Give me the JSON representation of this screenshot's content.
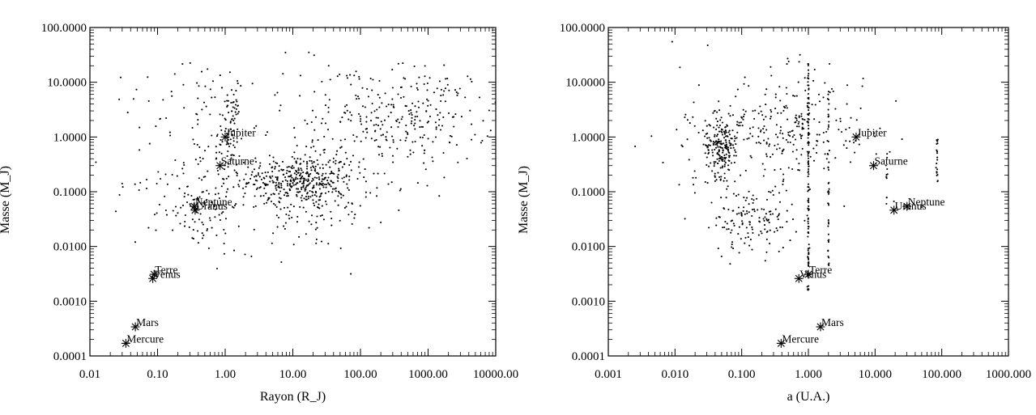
{
  "chart_data": [
    {
      "type": "scatter",
      "xlabel": "Rayon (R_J)",
      "ylabel": "Masse (M_J)",
      "xscale": "log",
      "yscale": "log",
      "xlim": [
        0.01,
        10000
      ],
      "ylim": [
        0.0001,
        100
      ],
      "xticks": [
        "0.01",
        "0.10",
        "1.00",
        "10.00",
        "100.00",
        "1000.00",
        "10000.00"
      ],
      "yticks": [
        "100.0000",
        "10.0000",
        "1.0000",
        "0.1000",
        "0.0100",
        "0.0010",
        "0.0001"
      ],
      "grid": false,
      "solar_system": [
        {
          "name": "Mercure",
          "x": 0.034,
          "y": 0.00017
        },
        {
          "name": "Mars",
          "x": 0.047,
          "y": 0.00034
        },
        {
          "name": "Venus",
          "x": 0.085,
          "y": 0.0026
        },
        {
          "name": "Terre",
          "x": 0.089,
          "y": 0.0031
        },
        {
          "name": "Uranus",
          "x": 0.36,
          "y": 0.046
        },
        {
          "name": "Neptune",
          "x": 0.35,
          "y": 0.054
        },
        {
          "name": "Saturne",
          "x": 0.84,
          "y": 0.3
        },
        {
          "name": "Jupiter",
          "x": 1.0,
          "y": 1.0
        }
      ],
      "clusters": [
        {
          "cx": 12,
          "cy": 0.17,
          "sx": 0.42,
          "sy": 0.22,
          "n": 360
        },
        {
          "cx": 1.2,
          "cy": 1.1,
          "sx": 0.07,
          "sy": 0.45,
          "n": 90
        },
        {
          "cx": 700,
          "cy": 2.5,
          "sx": 0.55,
          "sy": 0.45,
          "n": 220
        },
        {
          "cx": 15,
          "cy": 0.05,
          "sx": 0.5,
          "sy": 0.4,
          "n": 130
        },
        {
          "cx": 0.4,
          "cy": 0.06,
          "sx": 0.3,
          "sy": 0.45,
          "n": 110
        },
        {
          "cx": 0.45,
          "cy": 2.0,
          "sx": 0.35,
          "sy": 0.6,
          "n": 70
        },
        {
          "cx": 40,
          "cy": 2.0,
          "sx": 0.6,
          "sy": 0.6,
          "n": 90
        },
        {
          "cx": 0.05,
          "cy": 0.5,
          "sx": 0.25,
          "sy": 0.9,
          "n": 20
        },
        {
          "cx": 200,
          "cy": 0.3,
          "sx": 0.7,
          "sy": 0.5,
          "n": 40
        }
      ]
    },
    {
      "type": "scatter",
      "xlabel": "a (U.A.)",
      "ylabel": "Masse (M_J)",
      "xscale": "log",
      "yscale": "log",
      "xlim": [
        0.001,
        1000
      ],
      "ylim": [
        0.0001,
        100
      ],
      "xticks": [
        "0.001",
        "0.010",
        "0.100",
        "1.000",
        "10.000",
        "100.000",
        "1000.000"
      ],
      "yticks": [
        "100.0000",
        "10.0000",
        "1.0000",
        "0.1000",
        "0.0100",
        "0.0010",
        "0.0001"
      ],
      "grid": false,
      "solar_system": [
        {
          "name": "Mercure",
          "x": 0.39,
          "y": 0.00017
        },
        {
          "name": "Mars",
          "x": 1.52,
          "y": 0.00034
        },
        {
          "name": "Venus",
          "x": 0.72,
          "y": 0.0026
        },
        {
          "name": "Terre",
          "x": 1.0,
          "y": 0.0031
        },
        {
          "name": "Uranus",
          "x": 19.2,
          "y": 0.046
        },
        {
          "name": "Neptune",
          "x": 30.1,
          "y": 0.054
        },
        {
          "name": "Saturne",
          "x": 9.5,
          "y": 0.3
        },
        {
          "name": "Jupiter",
          "x": 5.2,
          "y": 1.0
        }
      ],
      "clusters": [
        {
          "cx": 0.05,
          "cy": 0.7,
          "sx": 0.12,
          "sy": 0.28,
          "n": 200
        },
        {
          "cx": 0.4,
          "cy": 1.5,
          "sx": 0.45,
          "sy": 0.5,
          "n": 220
        },
        {
          "cx": 0.15,
          "cy": 0.03,
          "sx": 0.3,
          "sy": 0.3,
          "n": 140
        },
        {
          "cx": 0.02,
          "cy": 1.0,
          "sx": 0.3,
          "sy": 0.7,
          "n": 40
        },
        {
          "cx": 5,
          "cy": 2.0,
          "sx": 0.4,
          "sy": 0.6,
          "n": 30
        }
      ],
      "lines": [
        {
          "x": 1.0,
          "ymin": 0.0015,
          "ymax": 22,
          "n": 120
        },
        {
          "x": 2.0,
          "ymin": 0.004,
          "ymax": 8,
          "n": 45
        },
        {
          "x": 15.0,
          "ymin": 0.06,
          "ymax": 0.5,
          "n": 12
        },
        {
          "x": 85,
          "ymin": 0.15,
          "ymax": 1.0,
          "n": 20
        }
      ]
    }
  ]
}
